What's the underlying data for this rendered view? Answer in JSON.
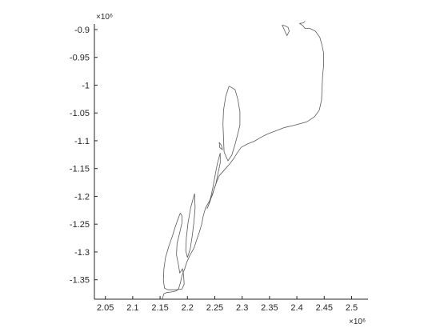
{
  "chart_data": {
    "type": "line",
    "title": "",
    "xlabel": "",
    "ylabel": "",
    "xlim": [
      2030000,
      2530000
    ],
    "ylim": [
      -1385000,
      -890000
    ],
    "x_ticks": [
      2050000,
      2100000,
      2150000,
      2200000,
      2250000,
      2300000,
      2350000,
      2400000,
      2450000,
      2500000
    ],
    "x_tick_labels": [
      "2.05",
      "2.1",
      "2.15",
      "2.2",
      "2.25",
      "2.3",
      "2.35",
      "2.4",
      "2.45",
      "2.5"
    ],
    "y_ticks": [
      -900000,
      -950000,
      -1000000,
      -1050000,
      -1100000,
      -1150000,
      -1200000,
      -1250000,
      -1300000,
      -1350000
    ],
    "y_tick_labels": [
      "-0.9",
      "-0.95",
      "-1",
      "-1.05",
      "-1.1",
      "-1.15",
      "-1.2",
      "-1.25",
      "-1.3",
      "-1.35"
    ],
    "x_exponent_label": "×10⁶",
    "y_exponent_label": "×10⁶",
    "grid": false,
    "box": "left-bottom axes only",
    "line_color": "#595959",
    "axis_color": "#262626",
    "series": [
      {
        "values": [
          [
            2415000,
            -885000
          ],
          [
            2412000,
            -888000
          ],
          [
            2405000,
            -889000
          ],
          [
            2411000,
            -893000
          ],
          [
            2415000,
            -898000
          ],
          [
            2424000,
            -898000
          ],
          [
            2434000,
            -903000
          ],
          [
            2442000,
            -914000
          ],
          [
            2446000,
            -928000
          ],
          [
            2449000,
            -943000
          ],
          [
            2449000,
            -963000
          ],
          [
            2447000,
            -985000
          ],
          [
            2446000,
            -1007000
          ],
          [
            2445000,
            -1027000
          ],
          [
            2441000,
            -1045000
          ],
          [
            2432000,
            -1057000
          ],
          [
            2418000,
            -1066000
          ],
          [
            2396000,
            -1072000
          ],
          [
            2378000,
            -1076000
          ],
          [
            2362000,
            -1082000
          ],
          [
            2346000,
            -1088000
          ],
          [
            2334000,
            -1094000
          ],
          [
            2322000,
            -1101000
          ],
          [
            2309000,
            -1106000
          ],
          [
            2298000,
            -1112000
          ],
          [
            2291000,
            -1122000
          ],
          [
            2284000,
            -1133000
          ],
          [
            2277000,
            -1142000
          ],
          [
            2267000,
            -1153000
          ],
          [
            2258000,
            -1163000
          ],
          [
            2253000,
            -1175000
          ],
          [
            2249000,
            -1186000
          ],
          [
            2246000,
            -1197000
          ],
          [
            2240000,
            -1209000
          ],
          [
            2233000,
            -1221000
          ],
          [
            2229000,
            -1235000
          ],
          [
            2226000,
            -1250000
          ],
          [
            2222000,
            -1264000
          ],
          [
            2217000,
            -1278000
          ],
          [
            2212000,
            -1293000
          ],
          [
            2205000,
            -1305000
          ],
          [
            2199000,
            -1318000
          ],
          [
            2195000,
            -1330000
          ],
          [
            2190000,
            -1343000
          ],
          [
            2187000,
            -1356000
          ],
          [
            2184000,
            -1366000
          ],
          [
            2180000,
            -1370000
          ],
          [
            2170000,
            -1372000
          ],
          [
            2162000,
            -1373000
          ],
          [
            2157000,
            -1375000
          ],
          [
            2154000,
            -1385000
          ]
        ]
      },
      {
        "values": [
          [
            2187000,
            -1230000
          ],
          [
            2183000,
            -1240000
          ],
          [
            2178000,
            -1254000
          ],
          [
            2173000,
            -1270000
          ],
          [
            2166000,
            -1290000
          ],
          [
            2160000,
            -1310000
          ],
          [
            2157000,
            -1330000
          ],
          [
            2156000,
            -1350000
          ],
          [
            2158000,
            -1365000
          ],
          [
            2164000,
            -1368000
          ],
          [
            2178000,
            -1368000
          ],
          [
            2190000,
            -1367000
          ],
          [
            2194000,
            -1358000
          ],
          [
            2193000,
            -1342000
          ],
          [
            2191000,
            -1330000
          ],
          [
            2186000,
            -1338000
          ],
          [
            2184000,
            -1325000
          ],
          [
            2180000,
            -1305000
          ],
          [
            2181000,
            -1285000
          ],
          [
            2186000,
            -1265000
          ],
          [
            2190000,
            -1248000
          ],
          [
            2190000,
            -1235000
          ],
          [
            2187000,
            -1230000
          ]
        ]
      },
      {
        "values": [
          [
            2276000,
            -1002000
          ],
          [
            2270000,
            -1020000
          ],
          [
            2266000,
            -1045000
          ],
          [
            2265000,
            -1070000
          ],
          [
            2266000,
            -1095000
          ],
          [
            2267000,
            -1120000
          ],
          [
            2274000,
            -1136000
          ],
          [
            2281000,
            -1126000
          ],
          [
            2286000,
            -1110000
          ],
          [
            2291000,
            -1092000
          ],
          [
            2296000,
            -1072000
          ],
          [
            2296000,
            -1048000
          ],
          [
            2292000,
            -1025000
          ],
          [
            2287000,
            -1008000
          ],
          [
            2280000,
            -1004000
          ],
          [
            2276000,
            -1002000
          ]
        ]
      },
      {
        "values": [
          [
            2260000,
            -1122000
          ],
          [
            2255000,
            -1140000
          ],
          [
            2251000,
            -1160000
          ],
          [
            2247000,
            -1182000
          ],
          [
            2243000,
            -1200000
          ],
          [
            2239000,
            -1215000
          ],
          [
            2236000,
            -1222000
          ],
          [
            2241000,
            -1210000
          ],
          [
            2246000,
            -1195000
          ],
          [
            2252000,
            -1178000
          ],
          [
            2256000,
            -1158000
          ],
          [
            2260000,
            -1140000
          ],
          [
            2260000,
            -1122000
          ]
        ]
      },
      {
        "values": [
          [
            2213000,
            -1195000
          ],
          [
            2206000,
            -1220000
          ],
          [
            2201000,
            -1248000
          ],
          [
            2198000,
            -1275000
          ],
          [
            2197000,
            -1298000
          ],
          [
            2200000,
            -1310000
          ],
          [
            2205000,
            -1295000
          ],
          [
            2209000,
            -1270000
          ],
          [
            2212000,
            -1245000
          ],
          [
            2214000,
            -1220000
          ],
          [
            2213000,
            -1195000
          ]
        ]
      },
      {
        "values": [
          [
            2373000,
            -892000
          ],
          [
            2376000,
            -898000
          ],
          [
            2379000,
            -905000
          ],
          [
            2382000,
            -911000
          ],
          [
            2386000,
            -903000
          ],
          [
            2384000,
            -896000
          ],
          [
            2378000,
            -893000
          ],
          [
            2373000,
            -892000
          ]
        ]
      },
      {
        "values": [
          [
            2258000,
            -1103000
          ],
          [
            2262000,
            -1108000
          ],
          [
            2264000,
            -1116000
          ],
          [
            2259000,
            -1112000
          ],
          [
            2258000,
            -1103000
          ]
        ]
      }
    ]
  }
}
